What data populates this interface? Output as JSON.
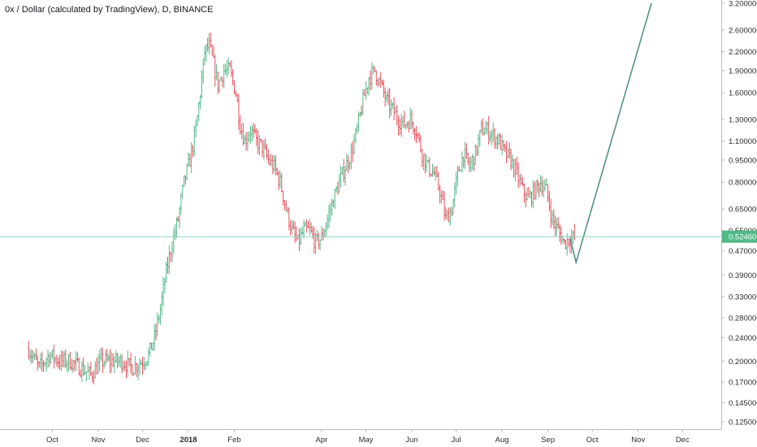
{
  "chart": {
    "title": "0x / Dollar (calculated by TradingView), D, BINANCE"
  },
  "chart_data": {
    "type": "line",
    "title": "0x / Dollar (calculated by TradingView), D, BINANCE",
    "y_scale": "log",
    "ylim": [
      0.115,
      3.25
    ],
    "xlim": [
      "2017-09-05",
      "2018-12-31"
    ],
    "y_ticks": [
      "3.200000",
      "2.600000",
      "2.200000",
      "1.900000",
      "1.600000",
      "1.300000",
      "1.100000",
      "0.950000",
      "0.800000",
      "0.650000",
      "0.550000",
      "0.470000",
      "0.390000",
      "0.330000",
      "0.280000",
      "0.240000",
      "0.200000",
      "0.170000",
      "0.145000",
      "0.125000"
    ],
    "x_ticks": [
      {
        "label": "Oct",
        "date": "2017-10-01",
        "bold": false
      },
      {
        "label": "Nov",
        "date": "2017-11-01",
        "bold": false
      },
      {
        "label": "Dec",
        "date": "2017-12-01",
        "bold": false
      },
      {
        "label": "2018",
        "date": "2018-01-01",
        "bold": true
      },
      {
        "label": "Feb",
        "date": "2018-02-01",
        "bold": false
      },
      {
        "label": "Apr",
        "date": "2018-04-01",
        "bold": false
      },
      {
        "label": "May",
        "date": "2018-05-01",
        "bold": false
      },
      {
        "label": "Jun",
        "date": "2018-06-01",
        "bold": false
      },
      {
        "label": "Jul",
        "date": "2018-07-01",
        "bold": false
      },
      {
        "label": "Aug",
        "date": "2018-08-01",
        "bold": false
      },
      {
        "label": "Sep",
        "date": "2018-09-01",
        "bold": false
      },
      {
        "label": "Oct",
        "date": "2018-10-01",
        "bold": false
      },
      {
        "label": "Nov",
        "date": "2018-11-01",
        "bold": false
      },
      {
        "label": "Dec",
        "date": "2018-12-01",
        "bold": false
      }
    ],
    "current_price": {
      "value": 0.5246,
      "label": "0.524601"
    },
    "series": [
      {
        "kind": "price_bars",
        "x": [
          "2017-09-15",
          "2017-09-22",
          "2017-09-29",
          "2017-10-06",
          "2017-10-13",
          "2017-10-20",
          "2017-10-27",
          "2017-11-03",
          "2017-11-10",
          "2017-11-17",
          "2017-11-24",
          "2017-12-01",
          "2017-12-05",
          "2017-12-09",
          "2017-12-13",
          "2017-12-17",
          "2017-12-21",
          "2017-12-25",
          "2017-12-29",
          "2018-01-02",
          "2018-01-06",
          "2018-01-09",
          "2018-01-12",
          "2018-01-15",
          "2018-01-18",
          "2018-01-21",
          "2018-01-25",
          "2018-01-29",
          "2018-02-02",
          "2018-02-05",
          "2018-02-08",
          "2018-02-12",
          "2018-02-16",
          "2018-02-20",
          "2018-02-24",
          "2018-02-28",
          "2018-03-04",
          "2018-03-08",
          "2018-03-12",
          "2018-03-16",
          "2018-03-20",
          "2018-03-24",
          "2018-03-28",
          "2018-04-01",
          "2018-04-05",
          "2018-04-09",
          "2018-04-13",
          "2018-04-17",
          "2018-04-21",
          "2018-04-25",
          "2018-04-29",
          "2018-05-03",
          "2018-05-07",
          "2018-05-11",
          "2018-05-15",
          "2018-05-19",
          "2018-05-23",
          "2018-05-27",
          "2018-05-31",
          "2018-06-04",
          "2018-06-08",
          "2018-06-12",
          "2018-06-16",
          "2018-06-20",
          "2018-06-24",
          "2018-06-28",
          "2018-07-02",
          "2018-07-06",
          "2018-07-10",
          "2018-07-14",
          "2018-07-18",
          "2018-07-22",
          "2018-07-26",
          "2018-07-30",
          "2018-08-03",
          "2018-08-07",
          "2018-08-11",
          "2018-08-15",
          "2018-08-19",
          "2018-08-23",
          "2018-08-27",
          "2018-08-31",
          "2018-09-04",
          "2018-09-08",
          "2018-09-12",
          "2018-09-16",
          "2018-09-19"
        ],
        "values": [
          0.22,
          0.19,
          0.21,
          0.2,
          0.2,
          0.19,
          0.18,
          0.2,
          0.2,
          0.2,
          0.19,
          0.2,
          0.21,
          0.24,
          0.3,
          0.4,
          0.5,
          0.6,
          0.8,
          0.95,
          1.2,
          1.6,
          2.2,
          2.3,
          2.0,
          1.7,
          1.9,
          1.9,
          1.6,
          1.25,
          1.1,
          1.2,
          1.1,
          1.05,
          0.95,
          0.9,
          0.8,
          0.65,
          0.55,
          0.5,
          0.55,
          0.55,
          0.5,
          0.52,
          0.6,
          0.7,
          0.8,
          0.9,
          1.0,
          1.2,
          1.5,
          1.8,
          1.9,
          1.7,
          1.5,
          1.4,
          1.3,
          1.25,
          1.3,
          1.2,
          1.0,
          0.9,
          0.85,
          0.75,
          0.6,
          0.65,
          0.85,
          1.0,
          0.9,
          1.0,
          1.2,
          1.2,
          1.15,
          1.1,
          1.0,
          0.95,
          0.85,
          0.75,
          0.7,
          0.75,
          0.8,
          0.75,
          0.6,
          0.55,
          0.5,
          0.52,
          0.52
        ]
      },
      {
        "kind": "projection_line",
        "x": [
          "2018-09-16",
          "2018-09-20",
          "2018-11-10"
        ],
        "values": [
          0.52,
          0.43,
          3.2
        ]
      }
    ],
    "colors": {
      "up": "#53b987",
      "down": "#eb4d5c",
      "projection": "#4a8b85",
      "price_line": "#8bd4c6",
      "price_badge": "#53b987",
      "axis": "#b8bcc3"
    },
    "legend": "none",
    "grid": false
  }
}
